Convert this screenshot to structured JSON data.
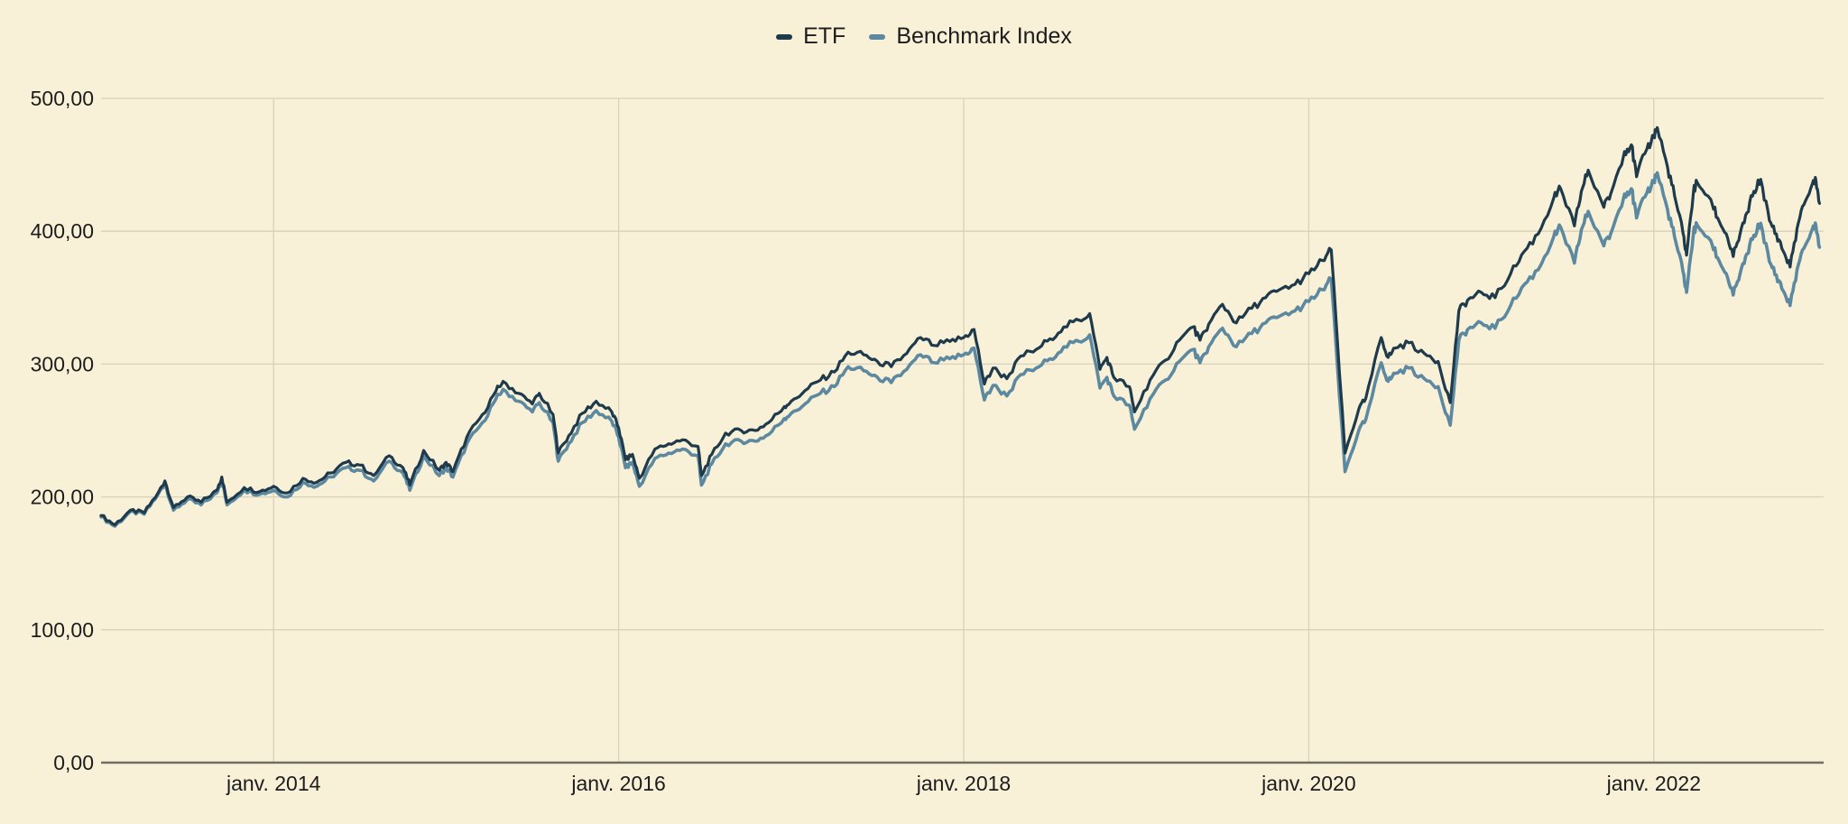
{
  "legend": {
    "items": [
      {
        "label": "ETF",
        "color": "#1e3a4b"
      },
      {
        "label": "Benchmark Index",
        "color": "#5d89a0"
      }
    ]
  },
  "colors": {
    "background": "#f8f1d8",
    "grid": "#d8d1bb",
    "axis": "#6f6e64",
    "text": "#1c1c1c",
    "etf_line": "#1e3a4b",
    "benchmark_line": "#5d89a0"
  },
  "axes": {
    "x_ticks": [
      {
        "x": 2014,
        "label": "janv. 2014"
      },
      {
        "x": 2016,
        "label": "janv. 2016"
      },
      {
        "x": 2018,
        "label": "janv. 2018"
      },
      {
        "x": 2020,
        "label": "janv. 2020"
      },
      {
        "x": 2022,
        "label": "janv. 2022"
      }
    ],
    "y_ticks": [
      {
        "v": 0,
        "label": "0,00"
      },
      {
        "v": 100,
        "label": "100,00"
      },
      {
        "v": 200,
        "label": "200,00"
      },
      {
        "v": 300,
        "label": "300,00"
      },
      {
        "v": 400,
        "label": "400,00"
      },
      {
        "v": 500,
        "label": "500,00"
      }
    ]
  },
  "chart_data": {
    "type": "line",
    "title": "",
    "xlabel": "",
    "ylabel": "",
    "x_unit": "decimal years (time axis, janv. 2013 - dec. 2022)",
    "xlim": [
      2013.0,
      2022.96
    ],
    "ylim": [
      0,
      500
    ],
    "grid": true,
    "legend_position": "top-center",
    "x": [
      2013.0,
      2013.08,
      2013.17,
      2013.25,
      2013.33,
      2013.37,
      2013.42,
      2013.5,
      2013.58,
      2013.67,
      2013.7,
      2013.73,
      2013.83,
      2013.92,
      2014.0,
      2014.08,
      2014.17,
      2014.25,
      2014.33,
      2014.42,
      2014.5,
      2014.58,
      2014.67,
      2014.75,
      2014.79,
      2014.87,
      2014.96,
      2015.0,
      2015.04,
      2015.12,
      2015.21,
      2015.29,
      2015.33,
      2015.42,
      2015.5,
      2015.54,
      2015.62,
      2015.65,
      2015.71,
      2015.79,
      2015.87,
      2015.96,
      2016.0,
      2016.04,
      2016.08,
      2016.12,
      2016.21,
      2016.29,
      2016.37,
      2016.46,
      2016.48,
      2016.54,
      2016.62,
      2016.71,
      2016.79,
      2016.87,
      2016.96,
      2017.0,
      2017.08,
      2017.17,
      2017.25,
      2017.33,
      2017.42,
      2017.5,
      2017.58,
      2017.67,
      2017.75,
      2017.83,
      2017.92,
      2018.0,
      2018.06,
      2018.12,
      2018.17,
      2018.25,
      2018.33,
      2018.42,
      2018.5,
      2018.58,
      2018.67,
      2018.73,
      2018.79,
      2018.83,
      2018.87,
      2018.96,
      2018.99,
      2019.08,
      2019.17,
      2019.25,
      2019.33,
      2019.37,
      2019.42,
      2019.5,
      2019.58,
      2019.67,
      2019.75,
      2019.83,
      2019.92,
      2020.0,
      2020.08,
      2020.13,
      2020.21,
      2020.29,
      2020.33,
      2020.42,
      2020.46,
      2020.5,
      2020.58,
      2020.67,
      2020.75,
      2020.82,
      2020.87,
      2020.92,
      2021.0,
      2021.08,
      2021.17,
      2021.25,
      2021.33,
      2021.42,
      2021.46,
      2021.54,
      2021.58,
      2021.62,
      2021.71,
      2021.75,
      2021.83,
      2021.87,
      2021.9,
      2021.96,
      2022.0,
      2022.02,
      2022.08,
      2022.12,
      2022.17,
      2022.19,
      2022.23,
      2022.25,
      2022.33,
      2022.37,
      2022.42,
      2022.46,
      2022.5,
      2022.54,
      2022.58,
      2022.62,
      2022.67,
      2022.71,
      2022.75,
      2022.79,
      2022.83,
      2022.87,
      2022.92,
      2022.94,
      2022.96
    ],
    "series": [
      {
        "name": "ETF",
        "color": "#1e3a4b",
        "values": [
          186,
          179,
          190,
          188,
          203,
          212,
          192,
          200,
          196,
          205,
          215,
          196,
          207,
          204,
          208,
          203,
          214,
          211,
          218,
          226,
          224,
          216,
          231,
          222,
          209,
          235,
          220,
          226,
          219,
          245,
          262,
          280,
          287,
          278,
          270,
          278,
          262,
          233,
          246,
          263,
          272,
          264,
          252,
          228,
          232,
          214,
          236,
          240,
          243,
          238,
          216,
          232,
          248,
          250,
          250,
          256,
          268,
          272,
          280,
          288,
          294,
          309,
          307,
          302,
          298,
          308,
          320,
          314,
          317,
          320,
          326,
          285,
          297,
          289,
          306,
          311,
          319,
          328,
          333,
          338,
          296,
          305,
          290,
          283,
          264,
          288,
          303,
          318,
          328,
          318,
          330,
          345,
          331,
          342,
          350,
          356,
          360,
          368,
          378,
          386,
          233,
          266,
          274,
          320,
          305,
          312,
          316,
          308,
          302,
          271,
          340,
          348,
          354,
          350,
          368,
          385,
          398,
          425,
          432,
          404,
          430,
          446,
          418,
          428,
          460,
          465,
          441,
          462,
          472,
          478,
          448,
          427,
          398,
          382,
          430,
          437,
          424,
          410,
          398,
          381,
          398,
          414,
          430,
          439,
          408,
          398,
          385,
          373,
          402,
          420,
          436,
          438,
          421
        ]
      },
      {
        "name": "Benchmark Index",
        "color": "#5d89a0",
        "values": [
          185,
          178,
          189,
          187,
          202,
          210,
          190,
          198,
          194,
          203,
          213,
          194,
          205,
          202,
          205,
          200,
          211,
          208,
          215,
          222,
          220,
          212,
          227,
          218,
          205,
          231,
          216,
          222,
          215,
          240,
          256,
          274,
          281,
          272,
          264,
          271,
          256,
          227,
          240,
          256,
          265,
          257,
          245,
          222,
          226,
          208,
          229,
          233,
          236,
          231,
          209,
          225,
          240,
          242,
          242,
          247,
          259,
          263,
          270,
          278,
          283,
          298,
          295,
          290,
          286,
          296,
          307,
          301,
          304,
          307,
          312,
          273,
          284,
          276,
          292,
          297,
          304,
          313,
          317,
          322,
          282,
          290,
          276,
          269,
          251,
          274,
          288,
          302,
          311,
          301,
          313,
          327,
          313,
          323,
          331,
          336,
          340,
          347,
          356,
          364,
          219,
          250,
          258,
          301,
          287,
          293,
          297,
          289,
          283,
          254,
          318,
          326,
          331,
          327,
          344,
          360,
          371,
          396,
          403,
          376,
          401,
          415,
          389,
          398,
          428,
          432,
          410,
          429,
          438,
          444,
          416,
          396,
          369,
          354,
          399,
          405,
          393,
          380,
          368,
          352,
          368,
          383,
          397,
          406,
          377,
          367,
          355,
          344,
          371,
          387,
          402,
          404,
          388
        ]
      }
    ]
  }
}
